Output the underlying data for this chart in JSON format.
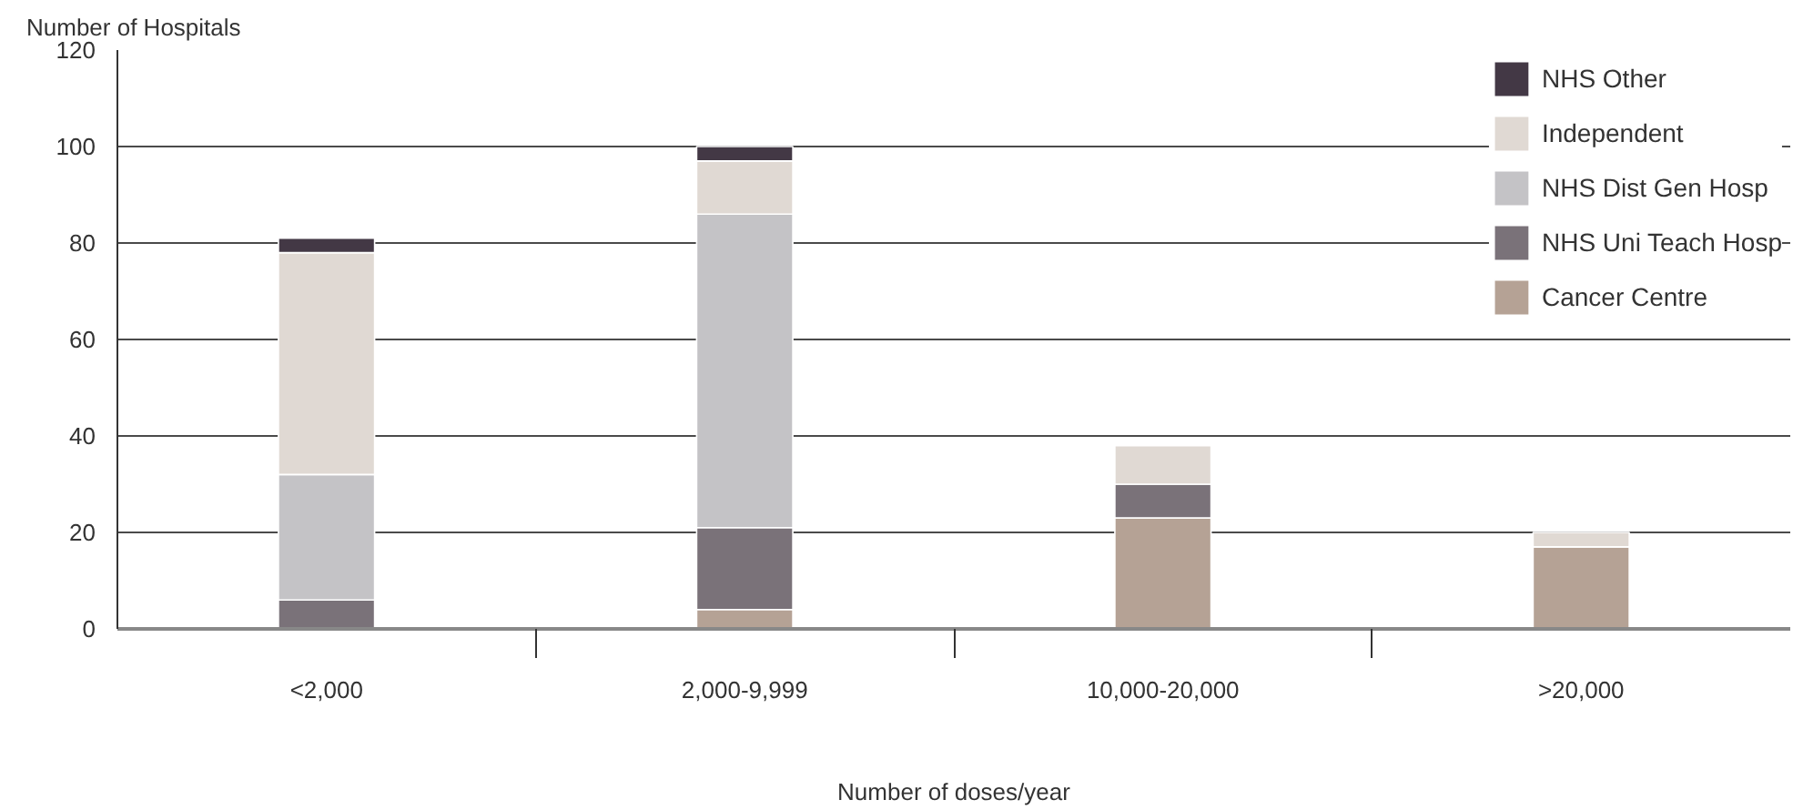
{
  "chart_data": {
    "type": "bar",
    "stacked": true,
    "ylabel": "Number of Hospitals",
    "xlabel": "Number of doses/year",
    "categories": [
      "<2,000",
      "2,000-9,999",
      "10,000-20,000",
      ">20,000"
    ],
    "series": [
      {
        "name": "Cancer Centre",
        "color": "#b5a295",
        "values": [
          null,
          4,
          23,
          17
        ]
      },
      {
        "name": "NHS Uni Teach Hosp",
        "color": "#7a7279",
        "values": [
          6,
          17,
          7,
          null
        ]
      },
      {
        "name": "NHS Dist Gen Hosp",
        "color": "#c4c3c6",
        "values": [
          26,
          65,
          null,
          null
        ]
      },
      {
        "name": "Independent",
        "color": "#e0d9d3",
        "values": [
          46,
          11,
          8,
          3
        ]
      },
      {
        "name": "NHS Other",
        "color": "#433845",
        "values": [
          3,
          3,
          null,
          null
        ]
      }
    ],
    "ylim": [
      0,
      120
    ],
    "yticks": [
      0,
      20,
      40,
      60,
      80,
      100,
      120
    ],
    "grid": "y",
    "legend": "top right"
  }
}
